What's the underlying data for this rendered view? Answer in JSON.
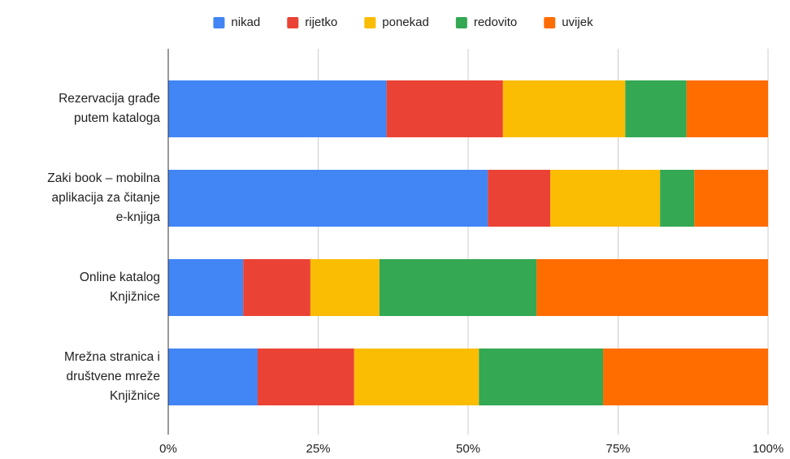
{
  "chart_data": {
    "type": "bar",
    "orientation": "horizontal",
    "stacked": true,
    "categories": [
      "Rezervacija građe\nputem kataloga",
      "Zaki book – mobilna\naplikacija za čitanje\ne-knjiga",
      "Online katalog\nKnjižnice",
      "Mrežna stranica i\ndruštvene mreže\nKnjižnice"
    ],
    "series": [
      {
        "name": "nikad",
        "color": "#4285f4",
        "values": [
          36.4,
          53.3,
          12.5,
          14.9
        ]
      },
      {
        "name": "rijetko",
        "color": "#ea4335",
        "values": [
          19.4,
          10.4,
          11.2,
          16.1
        ]
      },
      {
        "name": "ponekad",
        "color": "#fbbc04",
        "values": [
          20.4,
          18.3,
          11.5,
          20.8
        ]
      },
      {
        "name": "redovito",
        "color": "#34a853",
        "values": [
          10.2,
          5.7,
          26.2,
          20.7
        ]
      },
      {
        "name": "uvijek",
        "color": "#ff6d01",
        "values": [
          13.6,
          12.3,
          38.6,
          27.5
        ]
      }
    ],
    "xlim": [
      0,
      100
    ],
    "xticks": [
      {
        "value": 0,
        "label": "0%"
      },
      {
        "value": 25,
        "label": "25%"
      },
      {
        "value": 50,
        "label": "50%"
      },
      {
        "value": 75,
        "label": "75%"
      },
      {
        "value": 100,
        "label": "100%"
      }
    ],
    "grid": true,
    "legend": "top"
  }
}
